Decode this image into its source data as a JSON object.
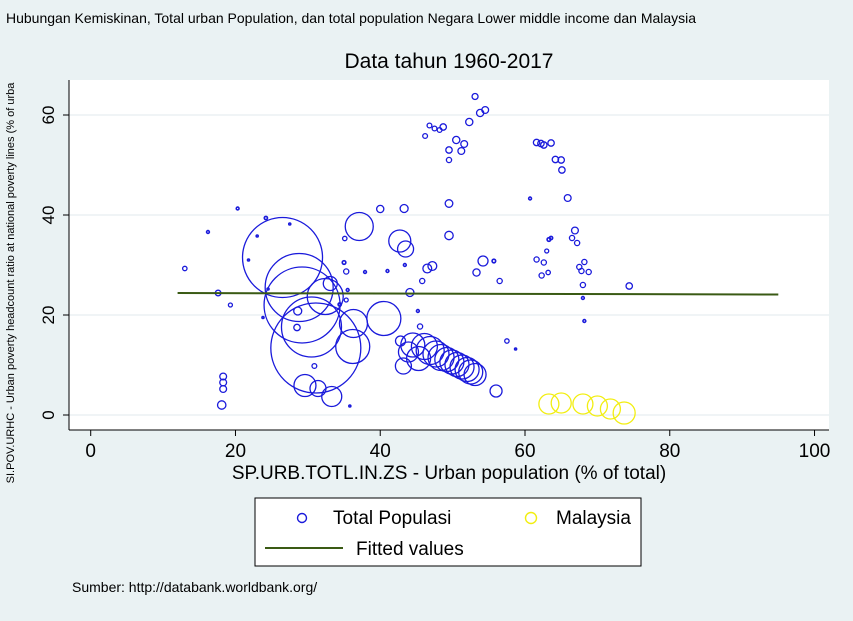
{
  "figure": {
    "header": "Hubungan Kemiskinan, Total urban Population, dan total population Negara Lower middle income dan Malaysia",
    "footer": "Sumber: http://databank.worldbank.org/",
    "background_color": "#eaf2f3"
  },
  "chart_data": {
    "type": "scatter",
    "title": "Data tahun 1960-2017",
    "xlabel": "SP.URB.TOTL.IN.ZS - Urban population (% of total)",
    "ylabel": "SI.POV.URHC - Urban poverty headcount ratio at national poverty lines (% of urba",
    "xlim": [
      -3,
      102
    ],
    "ylim": [
      -3,
      67
    ],
    "xticks": [
      0,
      20,
      40,
      60,
      80,
      100
    ],
    "yticks": [
      0,
      20,
      40,
      60
    ],
    "xtick_labels": [
      "0",
      "20",
      "40",
      "60",
      "80",
      "100"
    ],
    "ytick_labels": [
      "0",
      "20",
      "40",
      "60"
    ],
    "grid": "horizontal",
    "legend_position": "bottom",
    "series": [
      {
        "name": "Total Populasi",
        "marker": "hollow-circle",
        "color": "#1a1adb",
        "points": [
          {
            "x": 13,
            "y": 29.3,
            "s": 2.2
          },
          {
            "x": 16.2,
            "y": 36.6,
            "s": 1.4
          },
          {
            "x": 17.6,
            "y": 24.4,
            "s": 2.8
          },
          {
            "x": 18.3,
            "y": 7.7,
            "s": 3.4
          },
          {
            "x": 18.3,
            "y": 6.5,
            "s": 3.4
          },
          {
            "x": 18.3,
            "y": 5.2,
            "s": 3.4
          },
          {
            "x": 18.1,
            "y": 2.0,
            "s": 4.2
          },
          {
            "x": 19.3,
            "y": 22.0,
            "s": 2.0
          },
          {
            "x": 20.3,
            "y": 41.3,
            "s": 1.4
          },
          {
            "x": 21.8,
            "y": 31.0,
            "s": 1.0
          },
          {
            "x": 23.0,
            "y": 35.8,
            "s": 1.0
          },
          {
            "x": 24.2,
            "y": 39.4,
            "s": 1.6
          },
          {
            "x": 24.5,
            "y": 25.2,
            "s": 1.0
          },
          {
            "x": 27.5,
            "y": 38.2,
            "s": 1.0
          },
          {
            "x": 23.8,
            "y": 19.5,
            "s": 1.0
          },
          {
            "x": 26.5,
            "y": 31.5,
            "s": 40
          },
          {
            "x": 28.8,
            "y": 25.5,
            "s": 34
          },
          {
            "x": 29.2,
            "y": 22.0,
            "s": 38
          },
          {
            "x": 30.5,
            "y": 17.6,
            "s": 30
          },
          {
            "x": 31.1,
            "y": 13.4,
            "s": 45
          },
          {
            "x": 32.4,
            "y": 23.7,
            "s": 18
          },
          {
            "x": 28.5,
            "y": 17.5,
            "s": 3.2
          },
          {
            "x": 28.6,
            "y": 20.8,
            "s": 4.0
          },
          {
            "x": 29.6,
            "y": 5.9,
            "s": 11
          },
          {
            "x": 31.4,
            "y": 5.3,
            "s": 8
          },
          {
            "x": 33.3,
            "y": 3.7,
            "s": 10
          },
          {
            "x": 30.9,
            "y": 9.8,
            "s": 2.4
          },
          {
            "x": 33.1,
            "y": 26.3,
            "s": 7
          },
          {
            "x": 34.4,
            "y": 22.1,
            "s": 1.6
          },
          {
            "x": 35.0,
            "y": 30.5,
            "s": 1.8
          },
          {
            "x": 35.3,
            "y": 28.7,
            "s": 2.6
          },
          {
            "x": 35.3,
            "y": 23.0,
            "s": 2.0
          },
          {
            "x": 35.5,
            "y": 25.0,
            "s": 1.4
          },
          {
            "x": 35.1,
            "y": 35.3,
            "s": 2.2
          },
          {
            "x": 35.8,
            "y": 1.8,
            "s": 1.0
          },
          {
            "x": 36.3,
            "y": 18.3,
            "s": 14
          },
          {
            "x": 37.1,
            "y": 37.7,
            "s": 14
          },
          {
            "x": 36.2,
            "y": 13.7,
            "s": 17
          },
          {
            "x": 37.9,
            "y": 28.6,
            "s": 1.4
          },
          {
            "x": 40.0,
            "y": 41.2,
            "s": 3.6
          },
          {
            "x": 41.0,
            "y": 28.8,
            "s": 1.4
          },
          {
            "x": 40.5,
            "y": 19.3,
            "s": 17
          },
          {
            "x": 42.7,
            "y": 34.8,
            "s": 11
          },
          {
            "x": 43.5,
            "y": 33.2,
            "s": 8
          },
          {
            "x": 43.3,
            "y": 41.3,
            "s": 4.0
          },
          {
            "x": 44.1,
            "y": 24.5,
            "s": 4.0
          },
          {
            "x": 43.4,
            "y": 30.0,
            "s": 1.4
          },
          {
            "x": 45.2,
            "y": 20.8,
            "s": 1.4
          },
          {
            "x": 45.8,
            "y": 26.8,
            "s": 2.6
          },
          {
            "x": 46.5,
            "y": 29.3,
            "s": 4.4
          },
          {
            "x": 47.2,
            "y": 29.8,
            "s": 4.4
          },
          {
            "x": 46.2,
            "y": 55.8,
            "s": 2.4
          },
          {
            "x": 46.8,
            "y": 57.9,
            "s": 2.4
          },
          {
            "x": 47.5,
            "y": 57.3,
            "s": 2.4
          },
          {
            "x": 48.2,
            "y": 57.0,
            "s": 2.4
          },
          {
            "x": 48.7,
            "y": 57.6,
            "s": 3.2
          },
          {
            "x": 49.5,
            "y": 53.0,
            "s": 3.2
          },
          {
            "x": 49.5,
            "y": 51.0,
            "s": 2.6
          },
          {
            "x": 50.5,
            "y": 55.0,
            "s": 3.6
          },
          {
            "x": 51.2,
            "y": 52.8,
            "s": 3.4
          },
          {
            "x": 51.6,
            "y": 54.2,
            "s": 3.4
          },
          {
            "x": 52.3,
            "y": 58.6,
            "s": 3.6
          },
          {
            "x": 53.1,
            "y": 63.7,
            "s": 3.0
          },
          {
            "x": 53.8,
            "y": 60.4,
            "s": 3.6
          },
          {
            "x": 54.5,
            "y": 61.0,
            "s": 3.4
          },
          {
            "x": 49.5,
            "y": 42.3,
            "s": 3.8
          },
          {
            "x": 49.5,
            "y": 35.9,
            "s": 4.2
          },
          {
            "x": 53.3,
            "y": 28.5,
            "s": 3.6
          },
          {
            "x": 54.2,
            "y": 30.8,
            "s": 5.0
          },
          {
            "x": 55.7,
            "y": 30.8,
            "s": 1.8
          },
          {
            "x": 56.5,
            "y": 26.8,
            "s": 2.6
          },
          {
            "x": 57.5,
            "y": 14.8,
            "s": 2.2
          },
          {
            "x": 58.7,
            "y": 13.2,
            "s": 1.0
          },
          {
            "x": 45.5,
            "y": 17.7,
            "s": 2.6
          },
          {
            "x": 42.8,
            "y": 14.8,
            "s": 5
          },
          {
            "x": 43.2,
            "y": 9.8,
            "s": 8
          },
          {
            "x": 43.9,
            "y": 12.6,
            "s": 10
          },
          {
            "x": 44.5,
            "y": 14.0,
            "s": 12
          },
          {
            "x": 45.3,
            "y": 11.3,
            "s": 12
          },
          {
            "x": 46.1,
            "y": 13.7,
            "s": 13
          },
          {
            "x": 46.9,
            "y": 12.9,
            "s": 14
          },
          {
            "x": 47.7,
            "y": 12.2,
            "s": 13
          },
          {
            "x": 48.4,
            "y": 11.5,
            "s": 13
          },
          {
            "x": 49.2,
            "y": 11.1,
            "s": 12
          },
          {
            "x": 49.9,
            "y": 10.6,
            "s": 12
          },
          {
            "x": 50.6,
            "y": 10.1,
            "s": 12
          },
          {
            "x": 51.3,
            "y": 9.6,
            "s": 12
          },
          {
            "x": 52.0,
            "y": 9.1,
            "s": 12
          },
          {
            "x": 52.5,
            "y": 8.6,
            "s": 12
          },
          {
            "x": 53.1,
            "y": 8.1,
            "s": 11
          },
          {
            "x": 56.0,
            "y": 4.8,
            "s": 6
          },
          {
            "x": 60.7,
            "y": 43.3,
            "s": 1.4
          },
          {
            "x": 61.6,
            "y": 54.5,
            "s": 3.2
          },
          {
            "x": 62.2,
            "y": 54.3,
            "s": 3.2
          },
          {
            "x": 62.6,
            "y": 54.0,
            "s": 3.2
          },
          {
            "x": 63.6,
            "y": 54.4,
            "s": 3.2
          },
          {
            "x": 64.2,
            "y": 51.1,
            "s": 3.2
          },
          {
            "x": 65.0,
            "y": 51.0,
            "s": 3.2
          },
          {
            "x": 65.1,
            "y": 49.0,
            "s": 3.2
          },
          {
            "x": 65.9,
            "y": 43.4,
            "s": 3.4
          },
          {
            "x": 61.6,
            "y": 31.1,
            "s": 2.6
          },
          {
            "x": 62.6,
            "y": 30.5,
            "s": 2.6
          },
          {
            "x": 63.0,
            "y": 32.8,
            "s": 2.0
          },
          {
            "x": 63.3,
            "y": 35.1,
            "s": 1.8
          },
          {
            "x": 63.6,
            "y": 35.4,
            "s": 1.6
          },
          {
            "x": 62.3,
            "y": 27.9,
            "s": 2.6
          },
          {
            "x": 63.2,
            "y": 28.5,
            "s": 2.2
          },
          {
            "x": 66.5,
            "y": 35.4,
            "s": 2.6
          },
          {
            "x": 66.9,
            "y": 36.9,
            "s": 3.4
          },
          {
            "x": 67.2,
            "y": 34.4,
            "s": 2.6
          },
          {
            "x": 67.5,
            "y": 29.6,
            "s": 2.6
          },
          {
            "x": 67.8,
            "y": 28.8,
            "s": 2.6
          },
          {
            "x": 68.2,
            "y": 30.6,
            "s": 2.6
          },
          {
            "x": 68.0,
            "y": 26.0,
            "s": 2.6
          },
          {
            "x": 68.8,
            "y": 28.6,
            "s": 2.6
          },
          {
            "x": 68.0,
            "y": 23.4,
            "s": 1.4
          },
          {
            "x": 68.2,
            "y": 18.8,
            "s": 1.4
          },
          {
            "x": 74.4,
            "y": 25.8,
            "s": 3.2
          }
        ]
      },
      {
        "name": "Malaysia",
        "marker": "hollow-circle",
        "color": "#f2ee10",
        "points": [
          {
            "x": 63.3,
            "y": 2.2,
            "s": 10
          },
          {
            "x": 65.0,
            "y": 2.4,
            "s": 10
          },
          {
            "x": 68.0,
            "y": 2.2,
            "s": 10
          },
          {
            "x": 70.0,
            "y": 1.8,
            "s": 10
          },
          {
            "x": 71.8,
            "y": 1.2,
            "s": 10
          },
          {
            "x": 73.7,
            "y": 0.4,
            "s": 11
          }
        ]
      },
      {
        "name": "Fitted values",
        "marker": "line",
        "color": "#3a5a14",
        "points": [
          {
            "x": 12,
            "y": 24.4
          },
          {
            "x": 95,
            "y": 24.1
          }
        ]
      }
    ],
    "legend": [
      "Total Populasi",
      "Malaysia",
      "Fitted values"
    ]
  }
}
